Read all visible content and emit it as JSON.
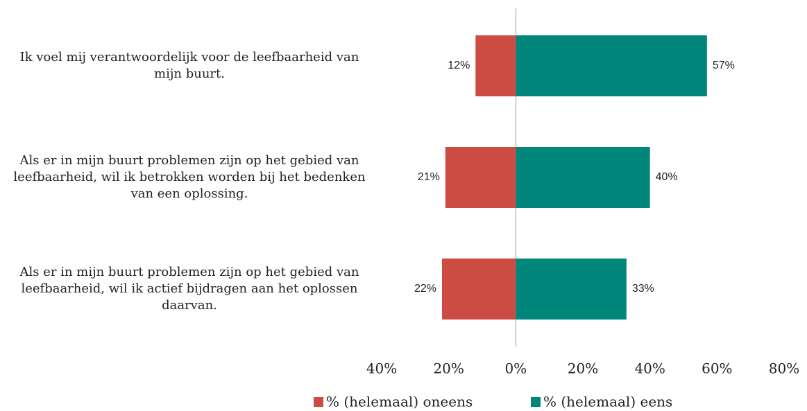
{
  "chart_data": {
    "type": "diverging_bar",
    "categories": [
      "Ik voel mij verantwoordelijk voor de leefbaarheid van mijn buurt.",
      "Als er in mijn buurt problemen zijn op het gebied van leefbaarheid, wil ik betrokken worden bij het bedenken van een oplossing.",
      "Als er in mijn buurt problemen zijn op het gebied van leefbaarheid, wil ik actief bijdragen aan het oplossen daarvan."
    ],
    "series": [
      {
        "name": "% (helemaal) oneens",
        "color": "#cc4c44",
        "values": [
          -12,
          -21,
          -22
        ],
        "value_labels": [
          "12%",
          "21%",
          "22%"
        ]
      },
      {
        "name": "% (helemaal) eens",
        "color": "#00867a",
        "values": [
          57,
          40,
          33
        ],
        "value_labels": [
          "57%",
          "40%",
          "33%"
        ]
      }
    ],
    "xlim": [
      -40,
      80
    ],
    "xticks": [
      {
        "value": -40,
        "label": "40%"
      },
      {
        "value": -20,
        "label": "20%"
      },
      {
        "value": 0,
        "label": "0%"
      },
      {
        "value": 20,
        "label": "20%"
      },
      {
        "value": 40,
        "label": "40%"
      },
      {
        "value": 60,
        "label": "60%"
      },
      {
        "value": 80,
        "label": "80%"
      }
    ],
    "legend": "bottom"
  }
}
